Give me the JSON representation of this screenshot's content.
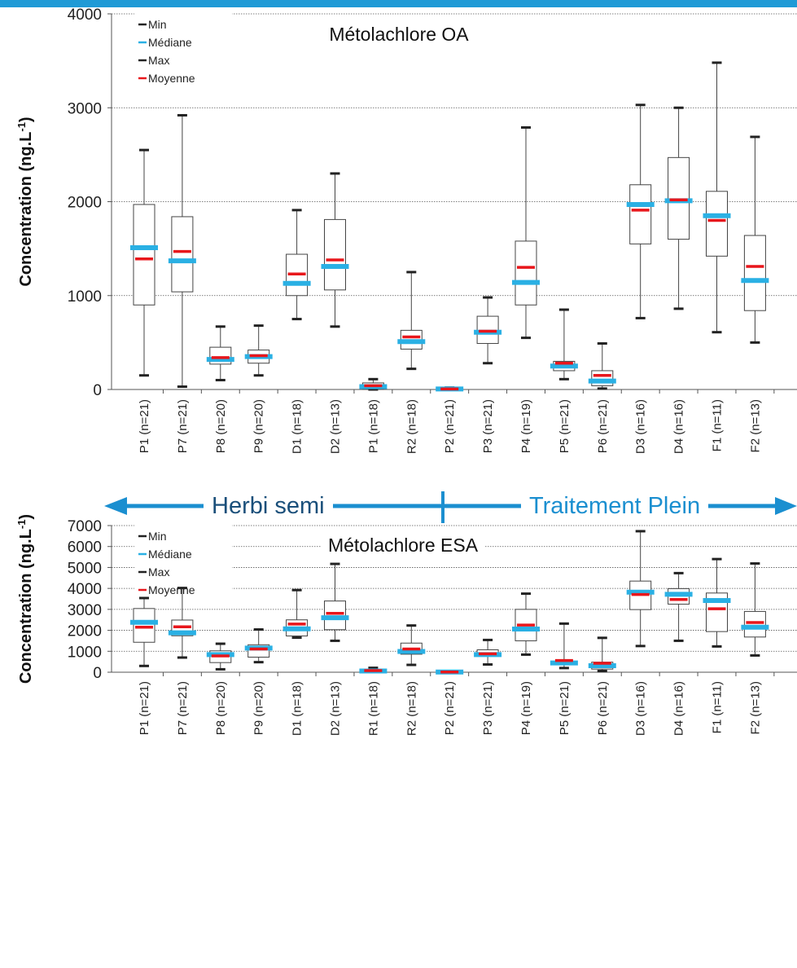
{
  "colors": {
    "top_bar": "#1f9ad6",
    "median": "#2ab0e4",
    "mean": "#e8161b",
    "arrow": "#1b8fd0",
    "grid": "#555555",
    "box": "#555555"
  },
  "legend": {
    "min": "Min",
    "median": "Médiane",
    "max": "Max",
    "mean": "Moyenne"
  },
  "divider": {
    "left_label": "Herbi semi",
    "right_label": "Traitement Plein"
  },
  "chart_data": [
    {
      "type": "boxplot",
      "title": "Métolachlore OA",
      "ylabel": "Concentration (ng.L-1)",
      "ylim": [
        0,
        4000
      ],
      "yticks": [
        0,
        1000,
        2000,
        3000,
        4000
      ],
      "grid": true,
      "legend_position": "top-left",
      "categories": [
        "P1 (n=21)",
        "P7 (n=21)",
        "P8 (n=20)",
        "P9 (n=20)",
        "D1 (n=18)",
        "D2 (n=13)",
        "P1 (n=18)",
        "R2 (n=18)",
        "P2 (n=21)",
        "P3 (n=21)",
        "P4 (n=19)",
        "P5 (n=21)",
        "P6 (n=21)",
        "D3 (n=16)",
        "D4 (n=16)",
        "F1 (n=11)",
        "F2 (n=13)"
      ],
      "min": [
        150,
        30,
        100,
        150,
        750,
        670,
        0,
        220,
        0,
        280,
        550,
        110,
        10,
        760,
        860,
        610,
        500
      ],
      "q1": [
        900,
        1040,
        270,
        280,
        1000,
        1060,
        0,
        430,
        0,
        490,
        900,
        200,
        40,
        1550,
        1600,
        1420,
        840
      ],
      "median": [
        1510,
        1370,
        320,
        350,
        1130,
        1310,
        30,
        510,
        5,
        610,
        1140,
        250,
        90,
        1970,
        2010,
        1850,
        1160
      ],
      "mean": [
        1390,
        1470,
        340,
        360,
        1230,
        1380,
        40,
        560,
        5,
        620,
        1300,
        280,
        150,
        1910,
        2020,
        1800,
        1310
      ],
      "q3": [
        1970,
        1840,
        450,
        420,
        1440,
        1810,
        70,
        630,
        10,
        780,
        1580,
        300,
        200,
        2180,
        2470,
        2110,
        1640
      ],
      "max": [
        2550,
        2920,
        670,
        680,
        1910,
        2300,
        110,
        1250,
        20,
        980,
        2790,
        850,
        490,
        3030,
        3000,
        3480,
        2690
      ]
    },
    {
      "type": "boxplot",
      "title": "Métolachlore ESA",
      "ylabel": "Concentration (ng.L-1)",
      "ylim": [
        0,
        7000
      ],
      "yticks": [
        0,
        1000,
        2000,
        3000,
        4000,
        5000,
        6000,
        7000
      ],
      "grid": true,
      "legend_position": "top-left",
      "categories": [
        "P1 (n=21)",
        "P7 (n=21)",
        "P8 (n=20)",
        "P9 (n=20)",
        "D1 (n=18)",
        "D2 (n=13)",
        "R1 (n=18)",
        "R2 (n=18)",
        "P2 (n=21)",
        "P3 (n=21)",
        "P4 (n=19)",
        "P5 (n=21)",
        "P6 (n=21)",
        "D3 (n=16)",
        "D4 (n=16)",
        "F1 (n=11)",
        "F2 (n=13)"
      ],
      "min": [
        300,
        700,
        140,
        480,
        1650,
        1500,
        0,
        350,
        0,
        370,
        840,
        200,
        60,
        1250,
        1500,
        1230,
        800
      ],
      "q1": [
        1430,
        1740,
        460,
        720,
        1730,
        2030,
        0,
        860,
        0,
        780,
        1500,
        400,
        150,
        2990,
        3250,
        1940,
        1680
      ],
      "median": [
        2380,
        1880,
        840,
        1150,
        2070,
        2600,
        60,
        990,
        10,
        840,
        2060,
        440,
        310,
        3820,
        3720,
        3420,
        2150
      ],
      "mean": [
        2150,
        2170,
        780,
        1110,
        2300,
        2810,
        80,
        1110,
        10,
        880,
        2250,
        560,
        430,
        3710,
        3470,
        3030,
        2370
      ],
      "q3": [
        3040,
        2490,
        1020,
        1310,
        2500,
        3400,
        100,
        1390,
        30,
        1070,
        3000,
        500,
        480,
        4350,
        3990,
        3780,
        2900
      ],
      "max": [
        3540,
        4020,
        1360,
        2040,
        3920,
        5170,
        210,
        2230,
        40,
        1540,
        3750,
        2320,
        1640,
        6730,
        4730,
        5400,
        5190
      ]
    }
  ]
}
